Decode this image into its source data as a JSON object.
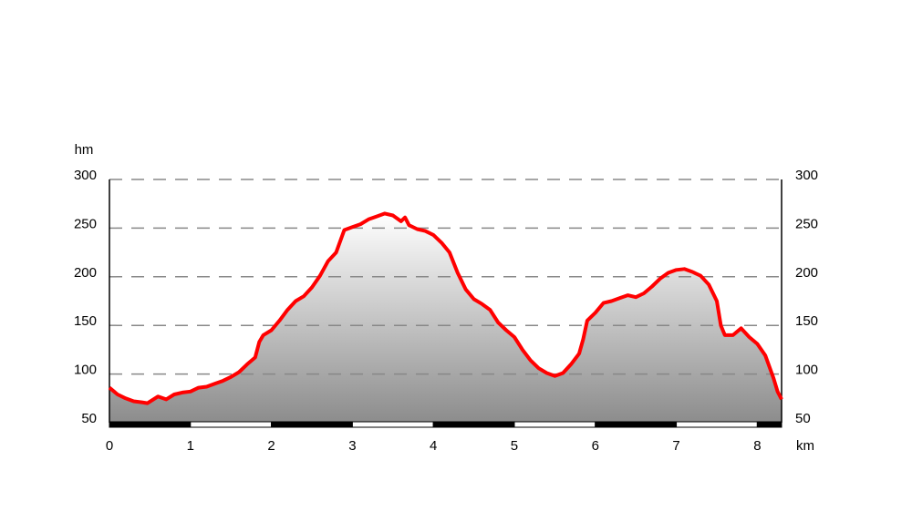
{
  "chart_data": {
    "type": "area",
    "x_label": "km",
    "y_label": "hm",
    "color": "#ff0000",
    "grid": true,
    "x": [
      0,
      0.1,
      0.2,
      0.3,
      0.4,
      0.47,
      0.6,
      0.7,
      0.8,
      0.9,
      1.0,
      1.1,
      1.2,
      1.3,
      1.4,
      1.5,
      1.6,
      1.7,
      1.8,
      1.85,
      1.9,
      2.0,
      2.1,
      2.2,
      2.3,
      2.4,
      2.5,
      2.6,
      2.7,
      2.8,
      2.9,
      3.0,
      3.1,
      3.2,
      3.3,
      3.4,
      3.5,
      3.6,
      3.65,
      3.7,
      3.8,
      3.9,
      4.0,
      4.1,
      4.2,
      4.3,
      4.4,
      4.5,
      4.6,
      4.7,
      4.8,
      4.9,
      5.0,
      5.1,
      5.2,
      5.3,
      5.4,
      5.5,
      5.6,
      5.7,
      5.8,
      5.85,
      5.9,
      6.0,
      6.1,
      6.2,
      6.3,
      6.4,
      6.5,
      6.6,
      6.7,
      6.8,
      6.9,
      7.0,
      7.1,
      7.2,
      7.3,
      7.4,
      7.5,
      7.55,
      7.6,
      7.7,
      7.8,
      7.9,
      8.0,
      8.1,
      8.2,
      8.25,
      8.3
    ],
    "values": [
      86,
      79,
      75,
      72,
      71,
      70,
      77,
      74,
      79,
      81,
      82,
      86,
      87,
      90,
      93,
      97,
      102,
      110,
      117,
      133,
      140,
      145,
      155,
      166,
      175,
      180,
      189,
      201,
      216,
      225,
      248,
      251,
      254,
      259,
      262,
      265,
      263,
      257,
      261,
      253,
      249,
      247,
      243,
      235,
      225,
      204,
      187,
      177,
      172,
      166,
      153,
      145,
      138,
      125,
      114,
      106,
      101,
      98,
      101,
      110,
      121,
      136,
      155,
      163,
      173,
      175,
      178,
      181,
      179,
      183,
      190,
      198,
      204,
      207,
      208,
      205,
      201,
      192,
      175,
      150,
      140,
      140,
      147,
      138,
      131,
      119,
      96,
      82,
      74
    ],
    "xlim": [
      0,
      8.3
    ],
    "ylim": [
      50,
      300
    ],
    "xticks": [
      0,
      1,
      2,
      3,
      4,
      5,
      6,
      7,
      8
    ],
    "yticks": [
      50,
      100,
      150,
      200,
      250,
      300
    ]
  }
}
